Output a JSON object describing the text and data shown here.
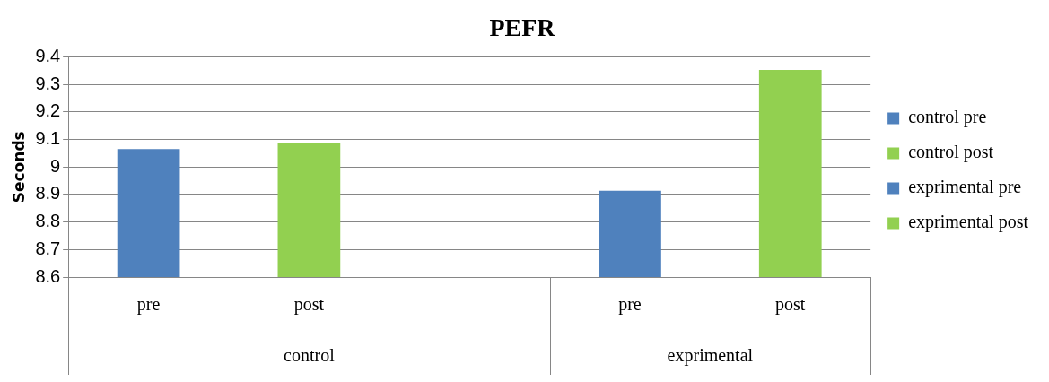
{
  "chart_data": {
    "type": "bar",
    "title": "PEFR",
    "ylabel": "Seconds",
    "categories": [
      "pre",
      "post",
      null,
      "pre",
      "post"
    ],
    "series": [
      {
        "name": "control pre",
        "color": "#4f81bd",
        "values": [
          9.065,
          null,
          null,
          null,
          null
        ]
      },
      {
        "name": "control post",
        "color": "#92d050",
        "values": [
          null,
          9.086,
          null,
          null,
          null
        ]
      },
      {
        "name": "exprimental pre",
        "color": "#4f81bd",
        "values": [
          null,
          null,
          null,
          8.914,
          null
        ]
      },
      {
        "name": "exprimental post",
        "color": "#92d050",
        "values": [
          null,
          null,
          null,
          null,
          9.353
        ]
      }
    ],
    "annotations": [
      "control",
      "exprimental"
    ],
    "ylim": [
      8.6,
      9.4
    ],
    "yticks": [
      8.6,
      8.7,
      8.8,
      8.9,
      9,
      9.1,
      9.2,
      9.3,
      9.4
    ],
    "grid": "y",
    "legend": "right"
  }
}
